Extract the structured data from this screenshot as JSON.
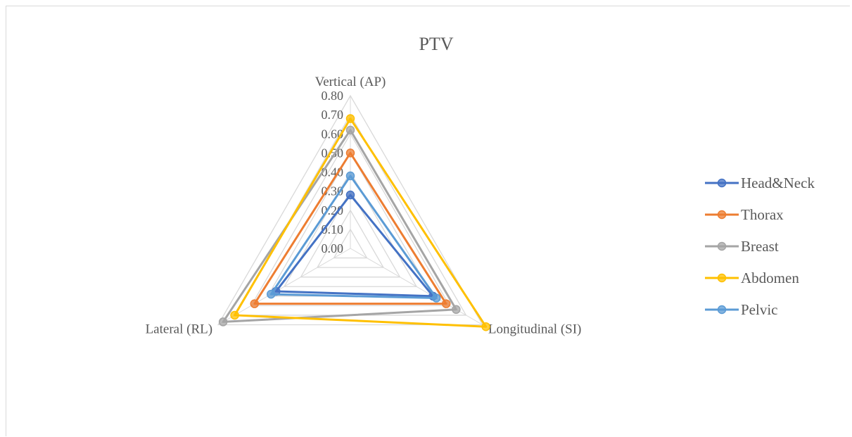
{
  "chart_data": {
    "type": "radar",
    "title": "PTV",
    "axes": [
      "Vertical (AP)",
      "Longitudinal (SI)",
      "Lateral (RL)"
    ],
    "rlim": [
      0,
      0.8
    ],
    "ticks": [
      "0.00",
      "0.10",
      "0.20",
      "0.30",
      "0.40",
      "0.50",
      "0.60",
      "0.70",
      "0.80"
    ],
    "grid": true,
    "legend_position": "right",
    "series": [
      {
        "name": "Head&Neck",
        "color": "#4472c4",
        "values": [
          0.28,
          0.5,
          0.45
        ]
      },
      {
        "name": "Thorax",
        "color": "#ed7d31",
        "values": [
          0.5,
          0.58,
          0.58
        ]
      },
      {
        "name": "Breast",
        "color": "#a5a5a5",
        "values": [
          0.62,
          0.64,
          0.77
        ]
      },
      {
        "name": "Abdomen",
        "color": "#ffc000",
        "values": [
          0.68,
          0.82,
          0.7
        ]
      },
      {
        "name": "Pelvic",
        "color": "#5b9bd5",
        "values": [
          0.38,
          0.52,
          0.48
        ]
      }
    ]
  }
}
